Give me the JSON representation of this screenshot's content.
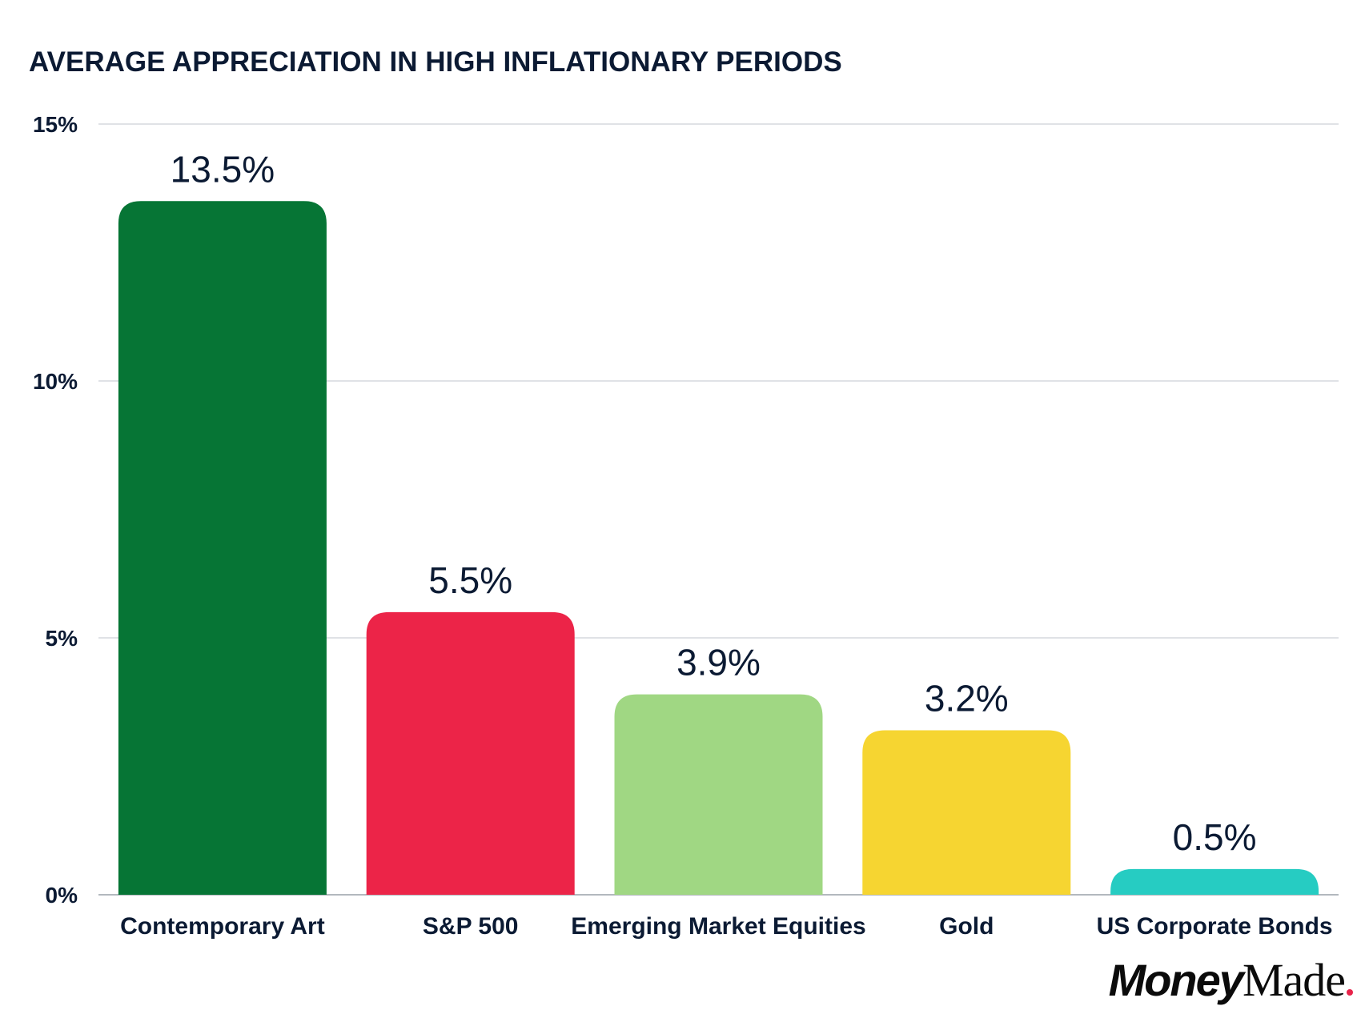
{
  "chart_data": {
    "type": "bar",
    "title": "AVERAGE APPRECIATION IN HIGH INFLATIONARY PERIODS",
    "xlabel": "",
    "ylabel": "",
    "ylim": [
      0,
      15
    ],
    "yticks": [
      0,
      5,
      10,
      15
    ],
    "ytick_labels": [
      "0%",
      "5%",
      "10%",
      "15%"
    ],
    "grid": true,
    "categories": [
      "Contemporary Art",
      "S&P 500",
      "Emerging Market Equities",
      "Gold",
      "US Corporate Bonds"
    ],
    "values": [
      13.5,
      5.5,
      3.9,
      3.2,
      0.5
    ],
    "data_labels": [
      "13.5%",
      "5.5%",
      "3.9%",
      "3.2%",
      "0.5%"
    ],
    "colors": [
      "#067535",
      "#ec2448",
      "#a0d783",
      "#f6d531",
      "#26ccc2"
    ]
  },
  "brand": {
    "part1": "Money",
    "part2": "Made",
    "dot_color": "#e8234a"
  }
}
